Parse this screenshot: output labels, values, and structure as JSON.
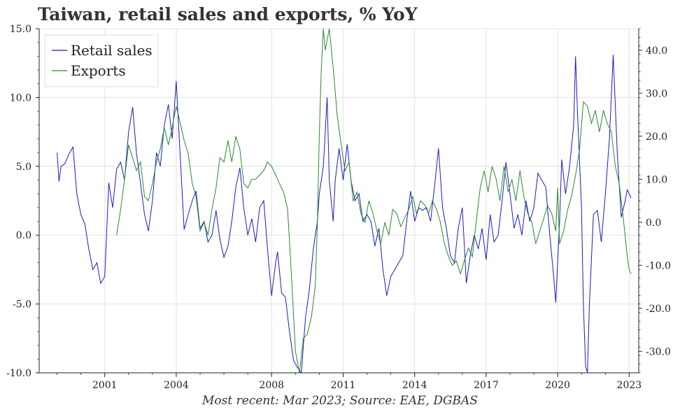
{
  "chart_data": {
    "type": "line",
    "title": "Taiwan, retail sales and exports, % YoY",
    "source": "Most recent: Mar 2023; Source: EAE, DGBAS",
    "colors": {
      "retail": "#1a1acc",
      "exports": "#2a8a2a"
    },
    "left_axis": {
      "ylim": [
        -10,
        15
      ],
      "ticks": [
        -10,
        -5,
        0,
        5,
        10,
        15
      ],
      "tick_labels": [
        "-10.0",
        "-5.0",
        "0.0",
        "5.0",
        "10.0",
        "15.0"
      ]
    },
    "right_axis": {
      "ylim": [
        -35,
        45
      ],
      "ticks": [
        -30,
        -20,
        -10,
        0,
        10,
        20,
        30,
        40
      ],
      "tick_labels": [
        "-30.0",
        "-20.0",
        "-10.0",
        "0.0",
        "10.0",
        "20.0",
        "30.0",
        "40.0"
      ]
    },
    "xlim": [
      1998.25,
      2023.4
    ],
    "x_ticks": [
      2001,
      2004,
      2008,
      2011,
      2014,
      2017,
      2020,
      2023
    ],
    "x_tick_labels": [
      "2001",
      "2004",
      "2008",
      "2011",
      "2014",
      "2017",
      "2020",
      "2023"
    ],
    "legend": {
      "position": "top-left",
      "entries": [
        "Retail sales",
        "Exports"
      ]
    },
    "series": [
      {
        "name": "Retail sales",
        "axis": "left",
        "points": [
          [
            1999.0,
            6.0
          ],
          [
            1999.08,
            3.9
          ],
          [
            1999.17,
            5.0
          ],
          [
            1999.33,
            5.2
          ],
          [
            1999.5,
            5.9
          ],
          [
            1999.67,
            6.4
          ],
          [
            1999.83,
            3.0
          ],
          [
            2000.0,
            1.5
          ],
          [
            2000.17,
            0.8
          ],
          [
            2000.33,
            -1.0
          ],
          [
            2000.5,
            -2.5
          ],
          [
            2000.67,
            -2.0
          ],
          [
            2000.83,
            -3.5
          ],
          [
            2001.0,
            -3.0
          ],
          [
            2001.17,
            3.8
          ],
          [
            2001.33,
            2.0
          ],
          [
            2001.5,
            4.8
          ],
          [
            2001.67,
            5.3
          ],
          [
            2001.83,
            4.0
          ],
          [
            2002.0,
            7.5
          ],
          [
            2002.17,
            9.3
          ],
          [
            2002.33,
            6.0
          ],
          [
            2002.5,
            3.8
          ],
          [
            2002.67,
            1.5
          ],
          [
            2002.83,
            0.3
          ],
          [
            2003.0,
            2.5
          ],
          [
            2003.17,
            6.0
          ],
          [
            2003.33,
            5.0
          ],
          [
            2003.5,
            8.0
          ],
          [
            2003.67,
            9.5
          ],
          [
            2003.83,
            7.0
          ],
          [
            2004.0,
            11.2
          ],
          [
            2004.08,
            8.5
          ],
          [
            2004.25,
            3.0
          ],
          [
            2004.33,
            0.4
          ],
          [
            2004.5,
            1.5
          ],
          [
            2004.67,
            2.5
          ],
          [
            2004.83,
            3.2
          ],
          [
            2005.0,
            0.5
          ],
          [
            2005.17,
            1.0
          ],
          [
            2005.33,
            -0.5
          ],
          [
            2005.5,
            0.0
          ],
          [
            2005.67,
            1.8
          ],
          [
            2005.83,
            -0.3
          ],
          [
            2006.0,
            -1.6
          ],
          [
            2006.17,
            -0.8
          ],
          [
            2006.33,
            1.0
          ],
          [
            2006.5,
            3.5
          ],
          [
            2006.67,
            4.9
          ],
          [
            2006.83,
            2.0
          ],
          [
            2007.0,
            0.0
          ],
          [
            2007.17,
            1.2
          ],
          [
            2007.33,
            -0.5
          ],
          [
            2007.5,
            2.0
          ],
          [
            2007.67,
            2.5
          ],
          [
            2007.83,
            -1.0
          ],
          [
            2008.0,
            -4.4
          ],
          [
            2008.17,
            -2.0
          ],
          [
            2008.25,
            -1.2
          ],
          [
            2008.42,
            -4.2
          ],
          [
            2008.58,
            -4.5
          ],
          [
            2008.75,
            -7.0
          ],
          [
            2008.92,
            -9.1
          ],
          [
            2009.08,
            -9.6
          ],
          [
            2009.25,
            -10.0
          ],
          [
            2009.42,
            -6.0
          ],
          [
            2009.58,
            -4.0
          ],
          [
            2009.75,
            -1.0
          ],
          [
            2009.92,
            1.0
          ],
          [
            2010.0,
            3.0
          ],
          [
            2010.17,
            5.0
          ],
          [
            2010.33,
            10.0
          ],
          [
            2010.42,
            4.0
          ],
          [
            2010.58,
            1.0
          ],
          [
            2010.67,
            4.0
          ],
          [
            2010.83,
            6.3
          ],
          [
            2011.0,
            4.0
          ],
          [
            2011.17,
            6.6
          ],
          [
            2011.33,
            4.0
          ],
          [
            2011.5,
            2.5
          ],
          [
            2011.67,
            3.0
          ],
          [
            2011.83,
            1.0
          ],
          [
            2012.0,
            1.5
          ],
          [
            2012.17,
            1.0
          ],
          [
            2012.33,
            -0.8
          ],
          [
            2012.5,
            0.5
          ],
          [
            2012.67,
            -2.5
          ],
          [
            2012.83,
            -4.4
          ],
          [
            2013.0,
            -3.0
          ],
          [
            2013.17,
            -2.5
          ],
          [
            2013.33,
            -2.0
          ],
          [
            2013.5,
            -1.5
          ],
          [
            2013.67,
            1.0
          ],
          [
            2013.83,
            3.2
          ],
          [
            2014.0,
            1.0
          ],
          [
            2014.17,
            2.0
          ],
          [
            2014.33,
            1.8
          ],
          [
            2014.5,
            2.0
          ],
          [
            2014.67,
            1.0
          ],
          [
            2014.83,
            3.5
          ],
          [
            2015.0,
            6.3
          ],
          [
            2015.17,
            2.0
          ],
          [
            2015.33,
            0.5
          ],
          [
            2015.5,
            -1.5
          ],
          [
            2015.67,
            -2.0
          ],
          [
            2015.83,
            0.5
          ],
          [
            2016.0,
            2.0
          ],
          [
            2016.17,
            -3.5
          ],
          [
            2016.33,
            -1.5
          ],
          [
            2016.5,
            0.0
          ],
          [
            2016.67,
            -1.0
          ],
          [
            2016.83,
            0.5
          ],
          [
            2017.0,
            -1.8
          ],
          [
            2017.17,
            1.5
          ],
          [
            2017.33,
            -0.5
          ],
          [
            2017.5,
            0.0
          ],
          [
            2017.67,
            2.5
          ],
          [
            2017.83,
            5.3
          ],
          [
            2018.0,
            3.0
          ],
          [
            2018.17,
            0.5
          ],
          [
            2018.33,
            1.5
          ],
          [
            2018.5,
            0.0
          ],
          [
            2018.67,
            2.5
          ],
          [
            2018.83,
            1.0
          ],
          [
            2019.0,
            2.0
          ],
          [
            2019.17,
            4.5
          ],
          [
            2019.33,
            4.0
          ],
          [
            2019.5,
            3.5
          ],
          [
            2019.67,
            0.0
          ],
          [
            2019.83,
            -3.0
          ],
          [
            2019.92,
            -4.9
          ],
          [
            2020.08,
            1.0
          ],
          [
            2020.17,
            5.5
          ],
          [
            2020.33,
            3.0
          ],
          [
            2020.5,
            5.0
          ],
          [
            2020.67,
            8.0
          ],
          [
            2020.75,
            13.0
          ],
          [
            2020.83,
            9.0
          ],
          [
            2021.0,
            2.0
          ],
          [
            2021.08,
            -5.0
          ],
          [
            2021.17,
            -9.5
          ],
          [
            2021.25,
            -10.0
          ],
          [
            2021.33,
            -5.0
          ],
          [
            2021.5,
            1.5
          ],
          [
            2021.67,
            1.8
          ],
          [
            2021.83,
            -0.5
          ],
          [
            2022.0,
            3.0
          ],
          [
            2022.17,
            7.0
          ],
          [
            2022.25,
            10.0
          ],
          [
            2022.33,
            13.1
          ],
          [
            2022.5,
            6.0
          ],
          [
            2022.67,
            1.3
          ],
          [
            2022.83,
            2.5
          ],
          [
            2022.92,
            3.3
          ],
          [
            2023.08,
            2.7
          ]
        ]
      },
      {
        "name": "Exports",
        "axis": "right",
        "points": [
          [
            2001.5,
            -3.0
          ],
          [
            2001.67,
            3.0
          ],
          [
            2001.83,
            10.0
          ],
          [
            2002.0,
            18.0
          ],
          [
            2002.17,
            15.0
          ],
          [
            2002.33,
            12.0
          ],
          [
            2002.5,
            14.0
          ],
          [
            2002.67,
            6.0
          ],
          [
            2002.83,
            5.0
          ],
          [
            2003.0,
            9.0
          ],
          [
            2003.17,
            14.0
          ],
          [
            2003.33,
            17.0
          ],
          [
            2003.5,
            22.0
          ],
          [
            2003.67,
            18.0
          ],
          [
            2003.83,
            22.0
          ],
          [
            2004.0,
            27.0
          ],
          [
            2004.17,
            23.0
          ],
          [
            2004.33,
            19.0
          ],
          [
            2004.5,
            16.0
          ],
          [
            2004.67,
            9.0
          ],
          [
            2004.83,
            6.0
          ],
          [
            2005.0,
            -2.0
          ],
          [
            2005.17,
            0.0
          ],
          [
            2005.33,
            -3.0
          ],
          [
            2005.5,
            3.0
          ],
          [
            2005.67,
            8.0
          ],
          [
            2005.83,
            15.0
          ],
          [
            2006.0,
            14.0
          ],
          [
            2006.17,
            19.0
          ],
          [
            2006.33,
            14.0
          ],
          [
            2006.5,
            20.0
          ],
          [
            2006.67,
            17.0
          ],
          [
            2006.83,
            9.0
          ],
          [
            2007.0,
            8.0
          ],
          [
            2007.17,
            10.0
          ],
          [
            2007.33,
            10.0
          ],
          [
            2007.5,
            11.0
          ],
          [
            2007.67,
            12.0
          ],
          [
            2007.83,
            14.0
          ],
          [
            2008.0,
            13.0
          ],
          [
            2008.17,
            11.0
          ],
          [
            2008.33,
            9.0
          ],
          [
            2008.5,
            7.0
          ],
          [
            2008.67,
            3.0
          ],
          [
            2008.83,
            -12.0
          ],
          [
            2009.0,
            -30.0
          ],
          [
            2009.17,
            -35.0
          ],
          [
            2009.33,
            -27.0
          ],
          [
            2009.5,
            -26.0
          ],
          [
            2009.67,
            -22.0
          ],
          [
            2009.83,
            -15.0
          ],
          [
            2009.92,
            0.0
          ],
          [
            2010.0,
            20.0
          ],
          [
            2010.08,
            35.0
          ],
          [
            2010.17,
            45.0
          ],
          [
            2010.25,
            40.0
          ],
          [
            2010.42,
            45.0
          ],
          [
            2010.58,
            36.0
          ],
          [
            2010.75,
            25.0
          ],
          [
            2010.92,
            18.0
          ],
          [
            2011.08,
            12.0
          ],
          [
            2011.25,
            14.0
          ],
          [
            2011.42,
            5.0
          ],
          [
            2011.58,
            7.0
          ],
          [
            2011.75,
            2.0
          ],
          [
            2011.92,
            0.0
          ],
          [
            2012.08,
            5.0
          ],
          [
            2012.25,
            2.0
          ],
          [
            2012.42,
            -2.0
          ],
          [
            2012.58,
            -5.0
          ],
          [
            2012.75,
            0.0
          ],
          [
            2012.92,
            -3.0
          ],
          [
            2013.08,
            3.0
          ],
          [
            2013.25,
            2.0
          ],
          [
            2013.42,
            -1.0
          ],
          [
            2013.58,
            1.0
          ],
          [
            2013.75,
            3.0
          ],
          [
            2013.92,
            6.0
          ],
          [
            2014.08,
            2.0
          ],
          [
            2014.25,
            5.0
          ],
          [
            2014.42,
            4.0
          ],
          [
            2014.58,
            2.0
          ],
          [
            2014.75,
            5.0
          ],
          [
            2014.92,
            3.0
          ],
          [
            2015.08,
            0.0
          ],
          [
            2015.25,
            -5.0
          ],
          [
            2015.42,
            -8.0
          ],
          [
            2015.58,
            -10.0
          ],
          [
            2015.75,
            -9.0
          ],
          [
            2015.92,
            -12.0
          ],
          [
            2016.08,
            -9.0
          ],
          [
            2016.25,
            -6.0
          ],
          [
            2016.42,
            -8.0
          ],
          [
            2016.58,
            0.0
          ],
          [
            2016.75,
            8.0
          ],
          [
            2016.92,
            12.0
          ],
          [
            2017.08,
            7.0
          ],
          [
            2017.25,
            13.0
          ],
          [
            2017.42,
            10.0
          ],
          [
            2017.58,
            5.0
          ],
          [
            2017.75,
            13.0
          ],
          [
            2017.92,
            7.0
          ],
          [
            2018.08,
            10.0
          ],
          [
            2018.25,
            5.0
          ],
          [
            2018.42,
            12.0
          ],
          [
            2018.58,
            6.0
          ],
          [
            2018.75,
            2.0
          ],
          [
            2018.92,
            0.0
          ],
          [
            2019.08,
            -5.0
          ],
          [
            2019.25,
            -2.0
          ],
          [
            2019.42,
            1.0
          ],
          [
            2019.58,
            4.0
          ],
          [
            2019.75,
            2.0
          ],
          [
            2019.92,
            -2.0
          ],
          [
            2020.0,
            8.0
          ],
          [
            2020.08,
            -5.0
          ],
          [
            2020.25,
            -2.0
          ],
          [
            2020.42,
            3.0
          ],
          [
            2020.58,
            6.0
          ],
          [
            2020.75,
            11.0
          ],
          [
            2020.92,
            17.0
          ],
          [
            2021.08,
            28.0
          ],
          [
            2021.25,
            27.0
          ],
          [
            2021.42,
            23.0
          ],
          [
            2021.58,
            26.0
          ],
          [
            2021.75,
            21.0
          ],
          [
            2021.92,
            26.0
          ],
          [
            2022.08,
            23.0
          ],
          [
            2022.25,
            21.0
          ],
          [
            2022.42,
            13.0
          ],
          [
            2022.58,
            9.0
          ],
          [
            2022.75,
            1.0
          ],
          [
            2022.92,
            -8.0
          ],
          [
            2023.0,
            -11.0
          ],
          [
            2023.08,
            -12.0
          ]
        ]
      }
    ]
  }
}
